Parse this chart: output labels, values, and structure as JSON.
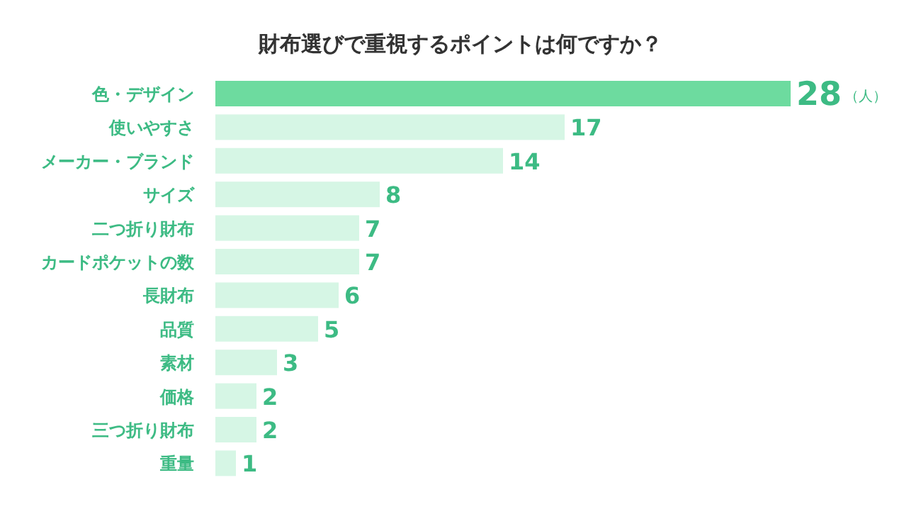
{
  "chart_data": {
    "type": "bar",
    "orientation": "horizontal",
    "title": "財布選びで重視するポイントは何ですか？",
    "categories": [
      "色・デザイン",
      "使いやすさ",
      "メーカー・ブランド",
      "サイズ",
      "二つ折り財布",
      "カードポケットの数",
      "長財布",
      "品質",
      "素材",
      "価格",
      "三つ折り財布",
      "重量"
    ],
    "values": [
      28,
      17,
      14,
      8,
      7,
      7,
      6,
      5,
      3,
      2,
      2,
      1
    ],
    "colors": [
      "#6ddb9f",
      "#d6f6e5",
      "#d6f6e5",
      "#d6f6e5",
      "#d6f6e5",
      "#d6f6e5",
      "#d6f6e5",
      "#d6f6e5",
      "#d6f6e5",
      "#d6f6e5",
      "#d6f6e5",
      "#d6f6e5"
    ],
    "data_labels": true,
    "annotations": [
      "（人）"
    ]
  }
}
